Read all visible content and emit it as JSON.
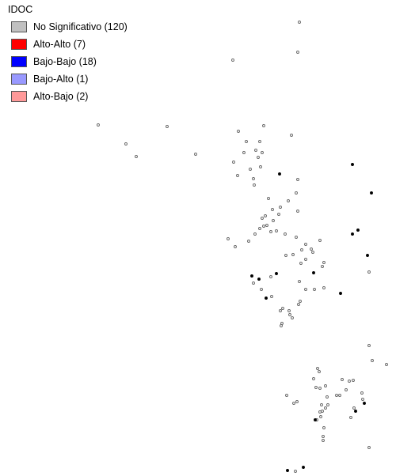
{
  "legend": {
    "title": "IDOC",
    "items": [
      {
        "label": "No Significativo (120)",
        "color": "#c0c0c0"
      },
      {
        "label": "Alto-Alto (7)",
        "color": "#ff0000"
      },
      {
        "label": "Bajo-Bajo (18)",
        "color": "#0000ff"
      },
      {
        "label": "Bajo-Alto (1)",
        "color": "#9999ff"
      },
      {
        "label": "Alto-Bajo (2)",
        "color": "#ff9999"
      }
    ]
  },
  "map": {
    "point_styles": {
      "not_significant": {
        "fill": "#ffffff",
        "stroke": "#666666"
      },
      "significant": {
        "fill": "#000000",
        "stroke": "#000000"
      }
    }
  }
}
